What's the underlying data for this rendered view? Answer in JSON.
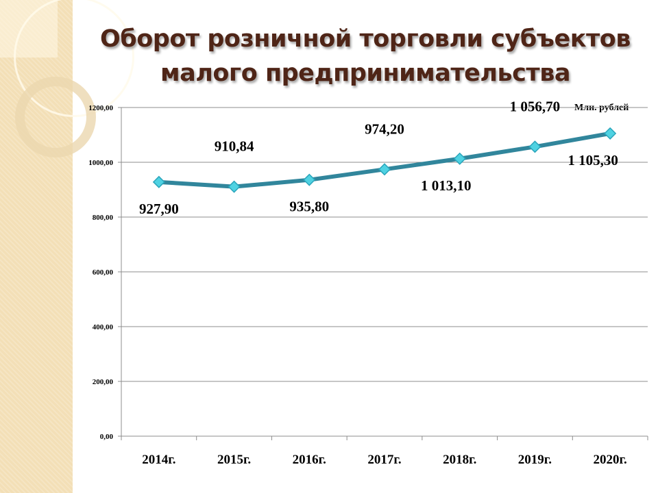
{
  "title_line1": "Оборот розничной торговли субъектов",
  "title_line2": "малого предпринимательства",
  "chart_data": {
    "type": "line",
    "title": "Оборот розничной торговли субъектов малого предпринимательства",
    "units_label": "Млн. рублей",
    "categories": [
      "2014г.",
      "2015г.",
      "2016г.",
      "2017г.",
      "2018г.",
      "2019г.",
      "2020г."
    ],
    "values": [
      927.9,
      910.84,
      935.8,
      974.2,
      1013.1,
      1056.7,
      1105.3
    ],
    "data_labels": [
      "927,90",
      "910,84",
      "935,80",
      "974,20",
      "1 013,10",
      "1 056,70",
      "1 105,30"
    ],
    "label_positions": [
      "below",
      "above",
      "below",
      "above",
      "below",
      "above",
      "below"
    ],
    "ylim": [
      0,
      1200
    ],
    "yticks": [
      0,
      200,
      400,
      600,
      800,
      1000,
      1200
    ],
    "ytick_labels": [
      "0,00",
      "200,00",
      "400,00",
      "600,00",
      "800,00",
      "1000,00",
      "1200,00"
    ],
    "grid": true,
    "line_color": "#31869c",
    "marker_color": "#4fd2e2"
  }
}
